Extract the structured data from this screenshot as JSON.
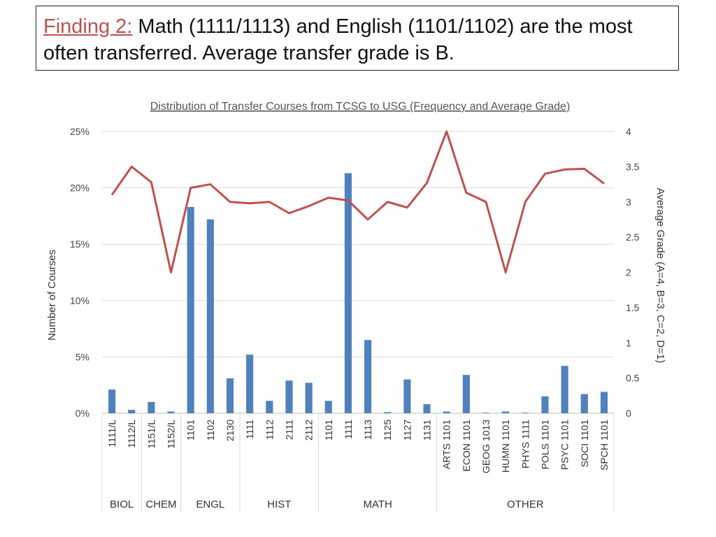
{
  "slide": {
    "finding_label": "Finding 2:",
    "finding_text": " Math (1111/1113) and English (1101/1102) are the most often transferred. Average transfer grade is B."
  },
  "colors": {
    "bars": "#4f81bd",
    "line": "#c0504d",
    "grid": "#d9d9d9"
  },
  "chart_data": {
    "type": "bar",
    "title": "Distribution of Transfer Courses from TCSG to USG (Frequency and Average Grade)",
    "ylabel": "Number of Courses",
    "y2label": "Average Grade (A=4, B=3, C=2, D=1)",
    "ylim": [
      0,
      25
    ],
    "y2lim": [
      0,
      4
    ],
    "yticks": [
      "0%",
      "5%",
      "10%",
      "15%",
      "20%",
      "25%"
    ],
    "y2ticks": [
      "0",
      "0.5",
      "1",
      "1.5",
      "2",
      "2.5",
      "3",
      "3.5",
      "4"
    ],
    "categories": [
      "1111/L",
      "1112/L",
      "1151/L",
      "1152/L",
      "1101",
      "1102",
      "2130",
      "1111",
      "1112",
      "2111",
      "2112",
      "1101",
      "1111",
      "1113",
      "1125",
      "1127",
      "1131",
      "ARTS 1101",
      "ECON 1101",
      "GEOG 1013",
      "HUMN 1101",
      "PHYS 1111",
      "POLS 1101",
      "PSYC 1101",
      "SOCI 1101",
      "SPCH 1101"
    ],
    "groups": [
      {
        "name": "BIOL",
        "count": 2
      },
      {
        "name": "CHEM",
        "count": 2
      },
      {
        "name": "ENGL",
        "count": 3
      },
      {
        "name": "HIST",
        "count": 4
      },
      {
        "name": "MATH",
        "count": 6
      },
      {
        "name": "OTHER",
        "count": 9
      }
    ],
    "series": [
      {
        "name": "Number of Courses",
        "type": "bar",
        "axis": "left",
        "values": [
          2.1,
          0.3,
          1.0,
          0.15,
          18.3,
          17.2,
          3.1,
          5.2,
          1.1,
          2.9,
          2.7,
          1.1,
          21.3,
          6.5,
          0.1,
          3.0,
          0.8,
          0.15,
          3.4,
          0.05,
          0.15,
          0.05,
          1.5,
          4.2,
          1.7,
          1.9
        ]
      },
      {
        "name": "Average Grade",
        "type": "line",
        "axis": "right",
        "values": [
          3.1,
          3.5,
          3.28,
          2.0,
          3.2,
          3.25,
          3.0,
          2.98,
          3.0,
          2.84,
          2.94,
          3.06,
          3.02,
          2.75,
          3.0,
          2.92,
          3.27,
          4.0,
          3.13,
          3.0,
          2.0,
          3.0,
          3.4,
          3.46,
          3.47,
          3.26
        ]
      }
    ]
  }
}
